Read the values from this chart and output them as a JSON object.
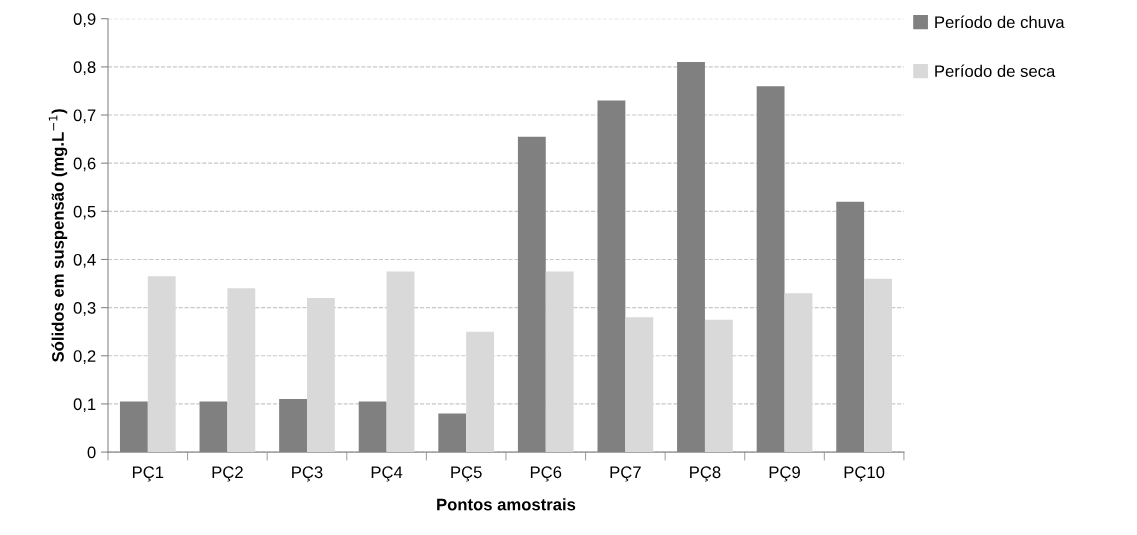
{
  "chart_data": {
    "type": "bar",
    "xlabel": "Pontos amostrais",
    "ylabel": "Sólidos em suspensão (mg.L$^{−1}$)",
    "categories": [
      "PÇ1",
      "PÇ2",
      "PÇ3",
      "PÇ4",
      "PÇ5",
      "PÇ6",
      "PÇ7",
      "PÇ8",
      "PÇ9",
      "PÇ10"
    ],
    "series": [
      {
        "name": "Período de chuva",
        "color": "#808080",
        "values": [
          0.105,
          0.105,
          0.11,
          0.105,
          0.08,
          0.655,
          0.73,
          0.81,
          0.76,
          0.52
        ]
      },
      {
        "name": "Período de seca",
        "color": "#d9d9d9",
        "values": [
          0.365,
          0.34,
          0.32,
          0.375,
          0.25,
          0.375,
          0.28,
          0.275,
          0.33,
          0.36
        ]
      }
    ],
    "ylim": [
      0,
      0.9
    ],
    "yticks": [
      0,
      {
        "value": 0.1,
        "label": "0,1"
      },
      {
        "value": 0.2,
        "label": "0,2"
      },
      {
        "value": 0.3,
        "label": "0,3"
      },
      {
        "value": 0.4,
        "label": "0,4"
      },
      {
        "value": 0.5,
        "label": "0,5"
      },
      {
        "value": 0.6,
        "label": "0,6"
      },
      {
        "value": 0.7,
        "label": "0,7"
      },
      {
        "value": 0.8,
        "label": "0,8"
      },
      {
        "value": 0.9,
        "label": "0,9"
      }
    ],
    "grid": "y",
    "legend": "top right"
  }
}
